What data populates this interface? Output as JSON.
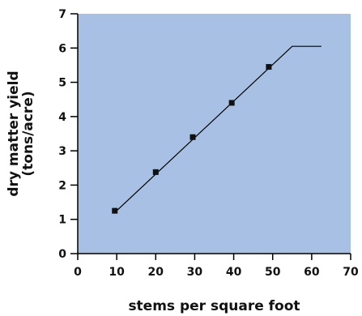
{
  "chart_data": {
    "type": "line",
    "title": "",
    "xlabel": "stems per square foot",
    "ylabel_line1": "dry matter yield",
    "ylabel_line2": "(tons/acre)",
    "xlim": [
      0,
      70
    ],
    "ylim": [
      0,
      7
    ],
    "xticks": [
      0,
      10,
      20,
      30,
      40,
      50,
      60,
      70
    ],
    "yticks": [
      0,
      1,
      2,
      3,
      4,
      5,
      6,
      7
    ],
    "grid": false,
    "legend": "none",
    "colors": {
      "plot_background": "#a7c0e3",
      "line": "#000000",
      "marker": "#111111"
    },
    "series": [
      {
        "kind": "scatter",
        "marker": "square",
        "x": [
          9.5,
          20,
          29.5,
          39.5,
          49
        ],
        "y": [
          1.25,
          2.38,
          3.4,
          4.4,
          5.45
        ]
      },
      {
        "kind": "line",
        "x": [
          9.5,
          55,
          62.5
        ],
        "y": [
          1.2,
          6.05,
          6.05
        ]
      }
    ]
  }
}
